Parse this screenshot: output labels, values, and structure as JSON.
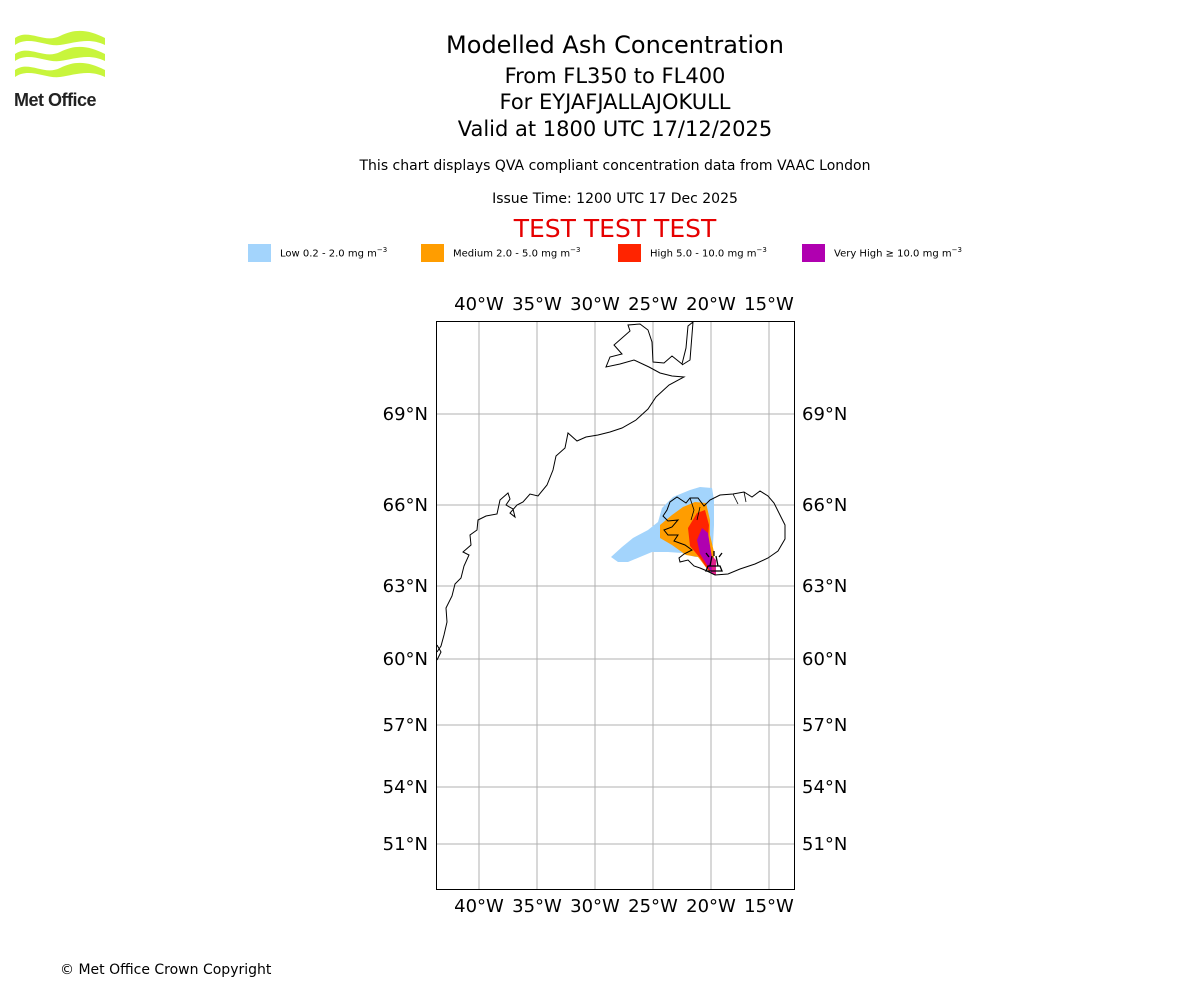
{
  "logo": {
    "text": "Met Office",
    "wave_color": "#c8f53c"
  },
  "header": {
    "title": "Modelled Ash Concentration",
    "levels": "From FL350 to FL400",
    "volcano": "For EYJAFJALLAJOKULL",
    "valid": "Valid at 1800 UTC 17/12/2025",
    "caption": "This chart displays QVA compliant concentration data from VAAC London",
    "issue": "Issue Time: 1200 UTC 17 Dec 2025",
    "test_banner": "TEST TEST TEST",
    "test_banner_color": "#e60000"
  },
  "legend": [
    {
      "prefix": "Low 0.2 - 2.0 mg m",
      "sup": "−3",
      "color": "#a3d4fc"
    },
    {
      "prefix": "Medium 2.0 - 5.0 mg m",
      "sup": "−3",
      "color": "#ff9d00"
    },
    {
      "prefix": "High 5.0 - 10.0 mg m",
      "sup": "−3",
      "color": "#ff2400"
    },
    {
      "prefix": "Very High  ≥  10.0 mg m",
      "sup": "−3",
      "color": "#b000b0"
    }
  ],
  "map": {
    "lon_labels": [
      "40°W",
      "35°W",
      "30°W",
      "25°W",
      "20°W",
      "15°W"
    ],
    "lat_labels": [
      "69°N",
      "66°N",
      "63°N",
      "60°N",
      "57°N",
      "54°N",
      "51°N"
    ],
    "volcano_marker": "volcano-icon"
  },
  "footer": {
    "copyright": "© Met Office Crown Copyright"
  }
}
